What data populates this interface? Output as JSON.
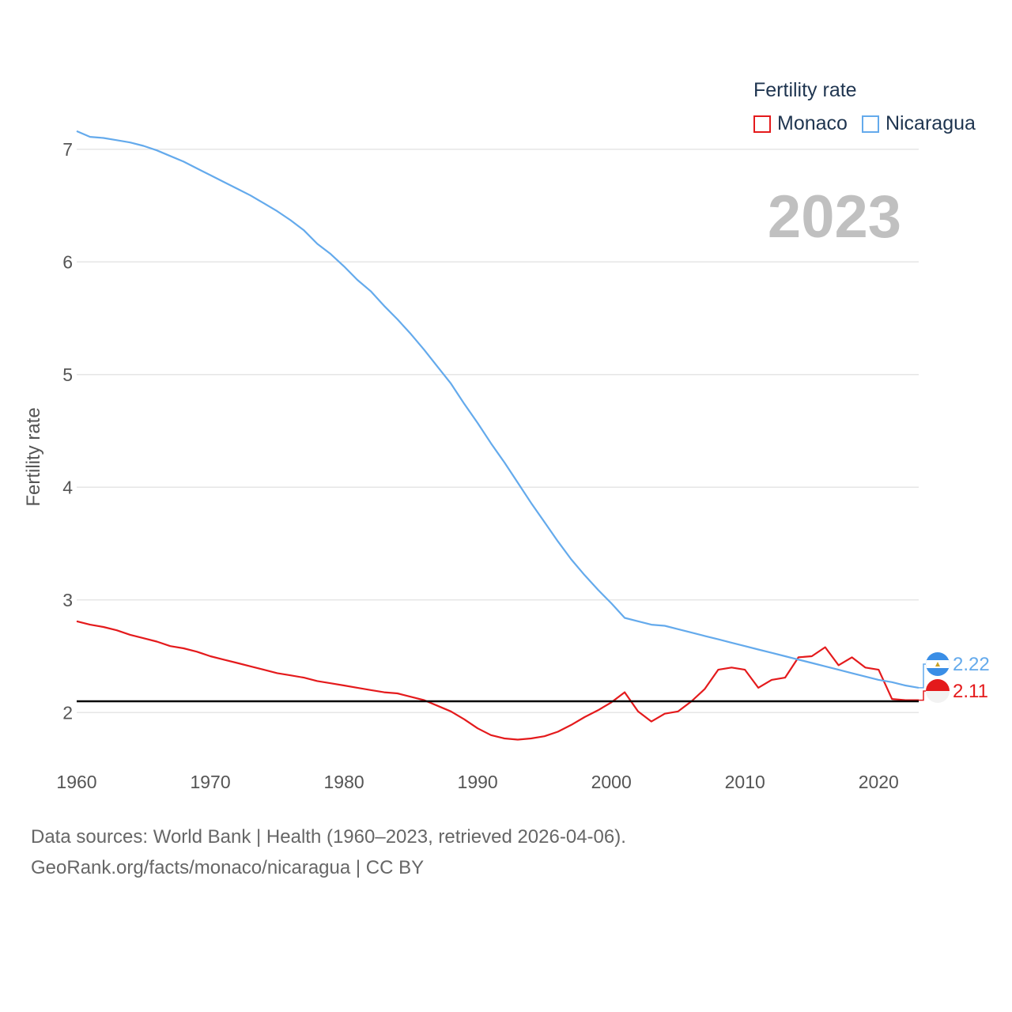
{
  "chart_data": {
    "type": "line",
    "title": "Fertility rate",
    "ylabel": "Fertility rate",
    "xlabel": "",
    "year_display": "2023",
    "xlim": [
      1960,
      2023
    ],
    "ylim": [
      1.3,
      7.3
    ],
    "x_ticks": [
      1960,
      1970,
      1980,
      1990,
      2000,
      2010,
      2020
    ],
    "y_ticks": [
      2,
      3,
      4,
      5,
      6,
      7
    ],
    "reference_line": 2.1,
    "x": [
      1960,
      1961,
      1962,
      1963,
      1964,
      1965,
      1966,
      1967,
      1968,
      1969,
      1970,
      1971,
      1972,
      1973,
      1974,
      1975,
      1976,
      1977,
      1978,
      1979,
      1980,
      1981,
      1982,
      1983,
      1984,
      1985,
      1986,
      1987,
      1988,
      1989,
      1990,
      1991,
      1992,
      1993,
      1994,
      1995,
      1996,
      1997,
      1998,
      1999,
      2000,
      2001,
      2002,
      2003,
      2004,
      2005,
      2006,
      2007,
      2008,
      2009,
      2010,
      2011,
      2012,
      2013,
      2014,
      2015,
      2016,
      2017,
      2018,
      2019,
      2020,
      2021,
      2022,
      2023
    ],
    "series": [
      {
        "name": "Monaco",
        "color": "#e41a1c",
        "end_label": "2.11",
        "values": [
          2.81,
          2.78,
          2.76,
          2.73,
          2.69,
          2.66,
          2.63,
          2.59,
          2.57,
          2.54,
          2.5,
          2.47,
          2.44,
          2.41,
          2.38,
          2.35,
          2.33,
          2.31,
          2.28,
          2.26,
          2.24,
          2.22,
          2.2,
          2.18,
          2.17,
          2.14,
          2.11,
          2.06,
          2.01,
          1.94,
          1.86,
          1.8,
          1.77,
          1.76,
          1.77,
          1.79,
          1.83,
          1.89,
          1.96,
          2.02,
          2.09,
          2.18,
          2.01,
          1.92,
          1.99,
          2.01,
          2.1,
          2.21,
          2.38,
          2.4,
          2.38,
          2.22,
          2.29,
          2.31,
          2.49,
          2.5,
          2.58,
          2.42,
          2.49,
          2.4,
          2.38,
          2.12,
          2.11,
          2.11
        ]
      },
      {
        "name": "Nicaragua",
        "color": "#64aaec",
        "end_label": "2.22",
        "values": [
          7.16,
          7.11,
          7.1,
          7.08,
          7.06,
          7.03,
          6.99,
          6.94,
          6.89,
          6.83,
          6.77,
          6.71,
          6.65,
          6.59,
          6.52,
          6.45,
          6.37,
          6.28,
          6.16,
          6.07,
          5.96,
          5.84,
          5.74,
          5.61,
          5.49,
          5.36,
          5.22,
          5.07,
          4.92,
          4.74,
          4.57,
          4.39,
          4.22,
          4.04,
          3.86,
          3.69,
          3.52,
          3.36,
          3.22,
          3.09,
          2.97,
          2.84,
          2.81,
          2.78,
          2.77,
          2.74,
          2.71,
          2.68,
          2.65,
          2.62,
          2.59,
          2.56,
          2.53,
          2.5,
          2.47,
          2.44,
          2.41,
          2.38,
          2.35,
          2.32,
          2.29,
          2.27,
          2.24,
          2.22
        ]
      }
    ]
  },
  "legend": {
    "title": "Fertility rate",
    "items": [
      {
        "label": "Monaco",
        "color": "#e41a1c"
      },
      {
        "label": "Nicaragua",
        "color": "#64aaec"
      }
    ]
  },
  "source": {
    "line1": "Data sources: World Bank | Health (1960–2023, retrieved 2026-04-06).",
    "line2": "GeoRank.org/facts/monaco/nicaragua | CC BY"
  },
  "flags": {
    "monaco": {
      "top": "#e41a1c",
      "bottom": "#f2f2f2"
    },
    "nicaragua": {
      "outer": "#3a8ee6",
      "middle": "#ffffff",
      "emblem": "#c9a227"
    }
  }
}
